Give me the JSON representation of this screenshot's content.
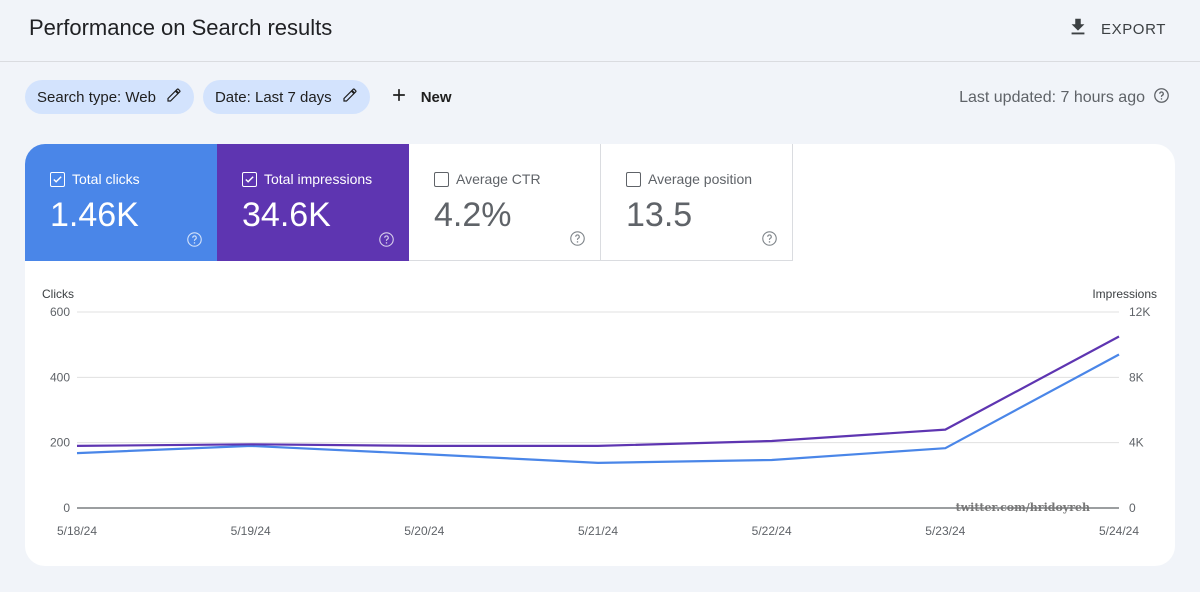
{
  "header": {
    "title": "Performance on Search results",
    "export_label": "EXPORT",
    "export_icon": "download-icon"
  },
  "filters": {
    "search_type": "Search type: Web",
    "date": "Date: Last 7 days",
    "new_label": "New",
    "edit_icon": "pencil-icon",
    "new_icon": "plus-icon"
  },
  "last_updated": "Last updated: 7 hours ago",
  "metrics": [
    {
      "label": "Total clicks",
      "value": "1.46K",
      "checked": true,
      "color": "#4a86e8"
    },
    {
      "label": "Total impressions",
      "value": "34.6K",
      "checked": true,
      "color": "#5e35b1"
    },
    {
      "label": "Average CTR",
      "value": "4.2%",
      "checked": false
    },
    {
      "label": "Average position",
      "value": "13.5",
      "checked": false
    }
  ],
  "chart_data": {
    "type": "line",
    "title": "",
    "x": [
      "5/18/24",
      "5/19/24",
      "5/20/24",
      "5/21/24",
      "5/22/24",
      "5/23/24",
      "5/24/24"
    ],
    "y_left_label": "Clicks",
    "y_right_label": "Impressions",
    "y_left_ticks": [
      "0",
      "200",
      "400",
      "600"
    ],
    "y_right_ticks": [
      "0",
      "4K",
      "8K",
      "12K"
    ],
    "y_left_lim": [
      0,
      600
    ],
    "y_right_lim": [
      0,
      12000
    ],
    "grid": true,
    "series": [
      {
        "name": "Total clicks",
        "axis": "left",
        "color": "#4a86e8",
        "values": [
          168,
          190,
          165,
          138,
          147,
          183,
          470
        ]
      },
      {
        "name": "Total impressions",
        "axis": "right",
        "color": "#5e35b1",
        "values": [
          3800,
          3900,
          3800,
          3800,
          4100,
          4800,
          10500
        ]
      }
    ]
  },
  "watermark": "twitter.com/hridoyreh"
}
